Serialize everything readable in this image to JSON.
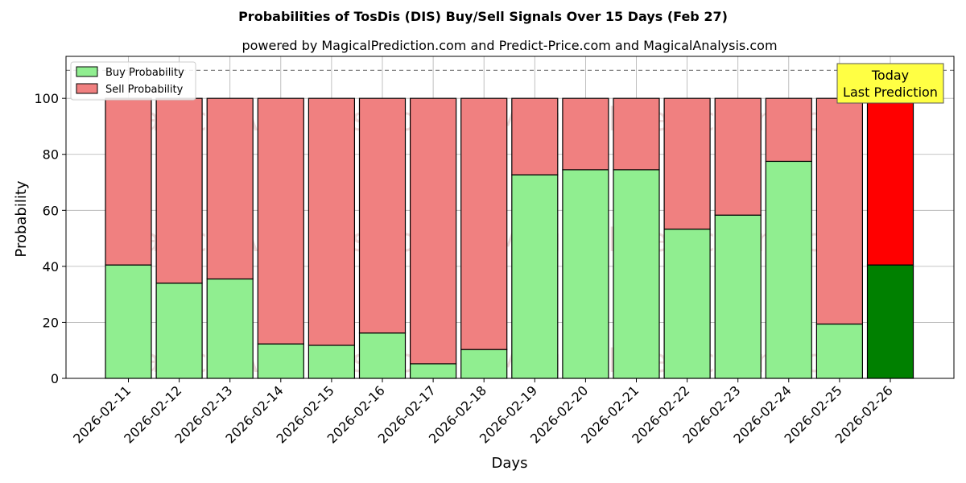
{
  "chart_data": {
    "type": "bar",
    "stacked": true,
    "title": "Probabilities of TosDis (DIS) Buy/Sell Signals Over 15 Days (Feb 27)",
    "subtitle": "powered by MagicalPrediction.com and Predict-Price.com and MagicalAnalysis.com",
    "xlabel": "Days",
    "ylabel": "Probability",
    "ylim": [
      0,
      115
    ],
    "yticks": [
      0,
      20,
      40,
      60,
      80,
      100
    ],
    "reference_line": 110,
    "grid": true,
    "legend_position": "top-left",
    "categories": [
      "2026-02-11",
      "2026-02-12",
      "2026-02-13",
      "2026-02-14",
      "2026-02-15",
      "2026-02-16",
      "2026-02-17",
      "2026-02-18",
      "2026-02-19",
      "2026-02-20",
      "2026-02-21",
      "2026-02-22",
      "2026-02-23",
      "2026-02-24",
      "2026-02-25",
      "2026-02-26"
    ],
    "series": [
      {
        "name": "Buy Probability",
        "color": "#90ee90",
        "highlight_color": "#008000",
        "values": [
          40.5,
          34,
          35.5,
          12.3,
          11.8,
          16.2,
          5.2,
          10.3,
          72.7,
          74.5,
          74.5,
          53.3,
          58.3,
          77.5,
          19.4,
          40.5
        ]
      },
      {
        "name": "Sell Probability",
        "color": "#f08080",
        "highlight_color": "#ff0000",
        "values": [
          59.5,
          66,
          64.5,
          87.7,
          88.2,
          83.8,
          94.8,
          89.7,
          27.3,
          25.5,
          25.5,
          46.7,
          41.7,
          22.5,
          80.6,
          59.5
        ]
      }
    ],
    "highlight_index": 15,
    "annotation": {
      "lines": [
        "Today",
        "Last Prediction"
      ],
      "background": "#ffff44"
    },
    "watermarks": [
      "MagicalAnalysis.com",
      "MagicalPrediction.com"
    ]
  }
}
